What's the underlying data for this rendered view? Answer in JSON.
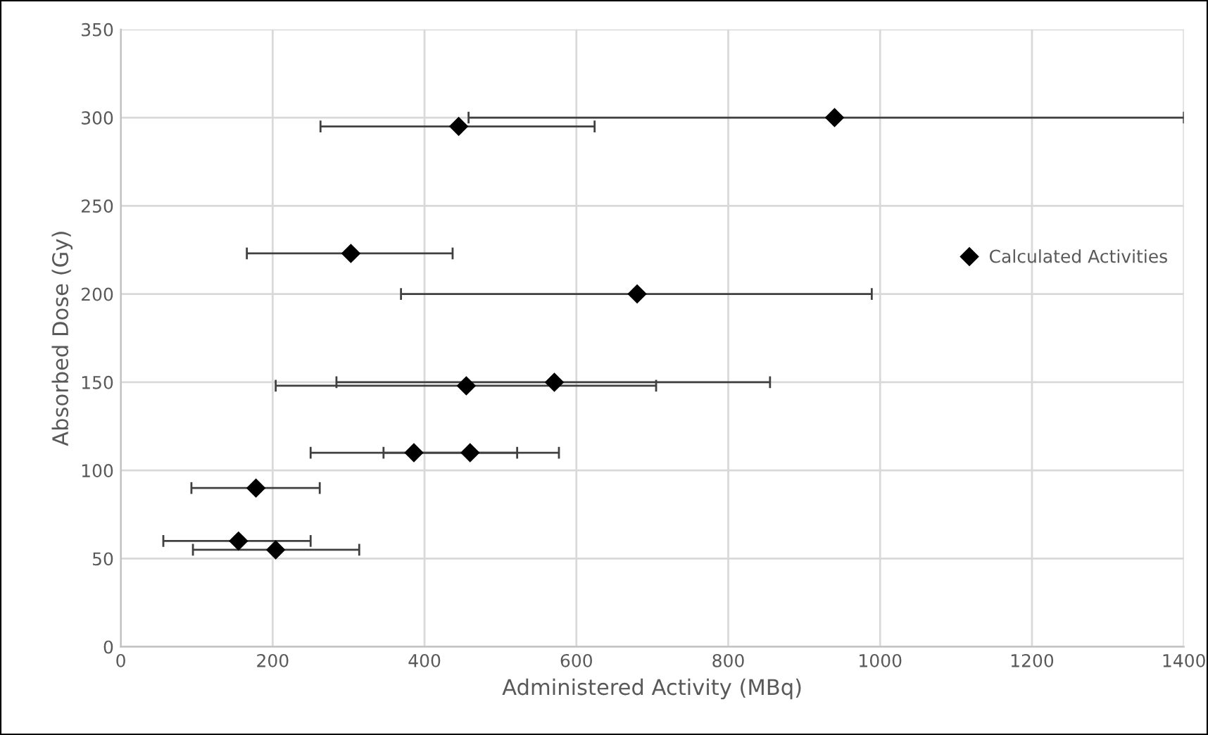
{
  "chart_data": {
    "type": "scatter",
    "xlabel": "Administered Activity (MBq)",
    "ylabel": "Absorbed Dose (Gy)",
    "xlim": [
      0,
      1400
    ],
    "xticks": [
      0,
      200,
      400,
      600,
      800,
      1000,
      1200,
      1400
    ],
    "ylim": [
      0,
      350
    ],
    "yticks": [
      0,
      50,
      100,
      150,
      200,
      250,
      300,
      350
    ],
    "grid": true,
    "legend": "right",
    "marker": "diamond",
    "series": [
      {
        "name": "Calculated Activities",
        "color": "#000000",
        "x": [
          940,
          445,
          303,
          680,
          571,
          455,
          386,
          460,
          178,
          155,
          204
        ],
        "values": [
          300,
          295,
          223,
          200,
          150,
          148,
          110,
          110,
          90,
          60,
          55
        ],
        "xerrors": [
          [
            458,
            1400
          ],
          [
            263,
            624
          ],
          [
            166,
            437
          ],
          [
            369,
            989
          ],
          [
            284,
            855
          ],
          [
            204,
            705
          ],
          [
            250,
            522
          ],
          [
            346,
            577
          ],
          [
            93,
            262
          ],
          [
            56,
            250
          ],
          [
            95,
            314
          ]
        ]
      }
    ]
  }
}
